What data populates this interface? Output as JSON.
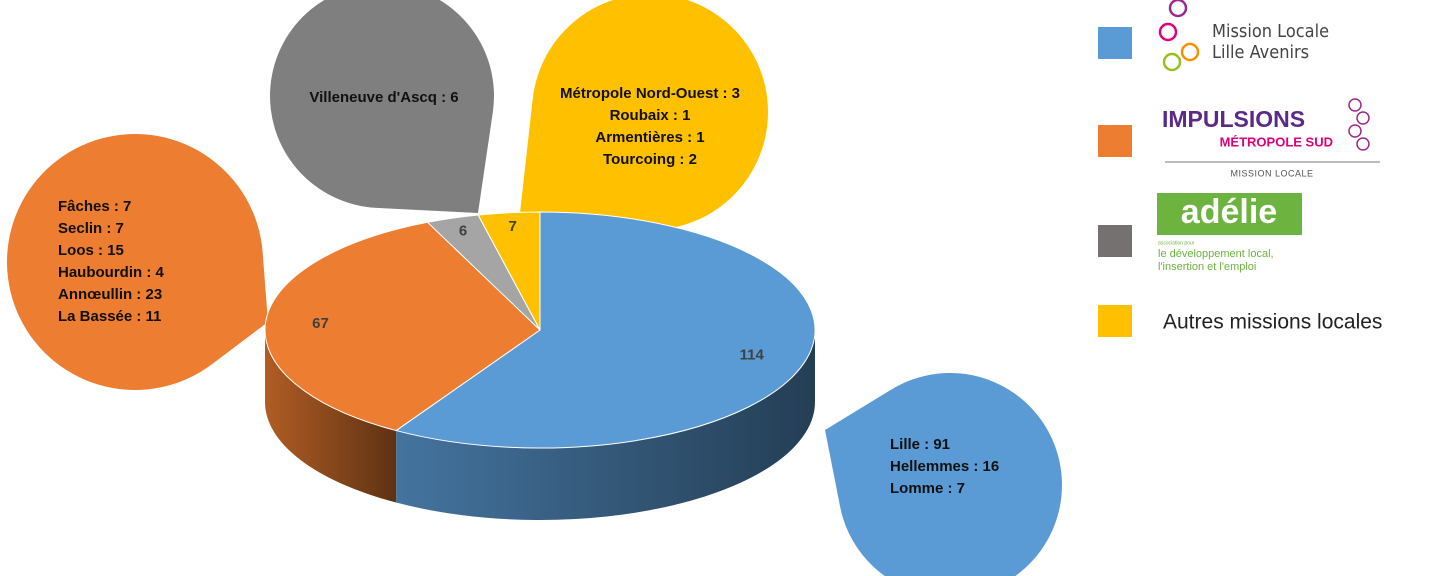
{
  "chart_data": {
    "type": "pie",
    "values": [
      114,
      67,
      6,
      7
    ],
    "colors": [
      "#5b9bd5",
      "#ed7d31",
      "#a5a5a5",
      "#ffc000"
    ],
    "callout_colors": [
      "#5b9bd5",
      "#ed7d31",
      "#7f7f7f",
      "#ffc000"
    ],
    "callouts": [
      [
        "Lille : 91",
        "Hellemmes : 16",
        "Lomme : 7"
      ],
      [
        "Fâches : 7",
        "Seclin : 7",
        "Loos : 15",
        "Haubourdin : 4",
        "Annœullin : 23",
        "La Bassée : 11"
      ],
      [
        "Villeneuve d'Ascq : 6"
      ],
      [
        "Métropole Nord-Ouest : 3",
        "Roubaix : 1",
        "Armentières : 1",
        "Tourcoing : 2"
      ]
    ],
    "legend": [
      {
        "color": "#5b9bd5",
        "lines": [
          "Mission Locale",
          "Lille Avenirs"
        ]
      },
      {
        "color": "#ed7d31",
        "lines": [
          "IMPULSIONS",
          "MÉTROPOLE SUD",
          "MISSION LOCALE"
        ]
      },
      {
        "color": "#767171",
        "lines": [
          "adélie",
          "association pour",
          "le développement local,",
          "l'insertion et l'emploi"
        ]
      },
      {
        "color": "#ffc000",
        "lines": [
          "Autres missions locales"
        ]
      }
    ]
  }
}
